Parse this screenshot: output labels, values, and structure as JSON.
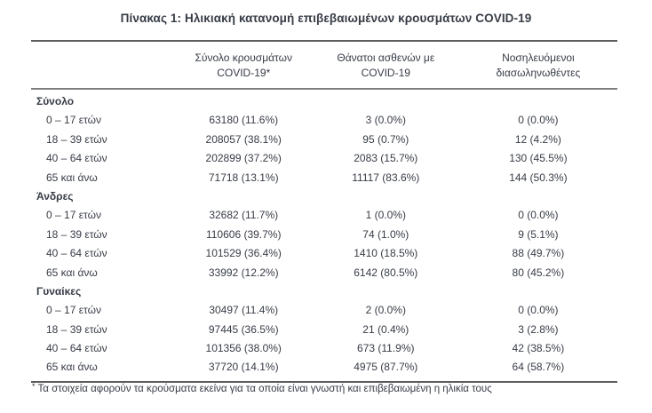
{
  "title": "Πίνακας 1: Ηλικιακή κατανομή επιβεβαιωμένων κρουσμάτων COVID-19",
  "theme": {
    "text_color": "#373c46",
    "rule_color": "#5c5c5c",
    "background": "#ffffff"
  },
  "columns": [
    {
      "id": "cases",
      "lines": [
        "Σύνολο κρουσμάτων",
        "COVID-19*"
      ]
    },
    {
      "id": "deaths",
      "lines": [
        "Θάνατοι ασθενών με",
        "COVID-19"
      ]
    },
    {
      "id": "intubated",
      "lines": [
        "Νοσηλευόμενοι",
        "διασωληνωθέντες"
      ]
    }
  ],
  "sections": [
    {
      "label": "Σύνολο",
      "rows": [
        {
          "age": "0 – 17 ετών",
          "cases": "63180 (11.6%)",
          "deaths": "3 (0.0%)",
          "intubated": "0 (0.0%)"
        },
        {
          "age": "18 – 39 ετών",
          "cases": "208057 (38.1%)",
          "deaths": "95 (0.7%)",
          "intubated": "12 (4.2%)"
        },
        {
          "age": "40 – 64 ετών",
          "cases": "202899 (37.2%)",
          "deaths": "2083 (15.7%)",
          "intubated": "130 (45.5%)"
        },
        {
          "age": "65 και άνω",
          "cases": "71718 (13.1%)",
          "deaths": "11117 (83.6%)",
          "intubated": "144 (50.3%)"
        }
      ]
    },
    {
      "label": "Άνδρες",
      "rows": [
        {
          "age": "0 – 17 ετών",
          "cases": "32682 (11.7%)",
          "deaths": "1 (0.0%)",
          "intubated": "0 (0.0%)"
        },
        {
          "age": "18 – 39 ετών",
          "cases": "110606 (39.7%)",
          "deaths": "74 (1.0%)",
          "intubated": "9 (5.1%)"
        },
        {
          "age": "40 – 64 ετών",
          "cases": "101529 (36.4%)",
          "deaths": "1410 (18.5%)",
          "intubated": "88 (49.7%)"
        },
        {
          "age": "65 και άνω",
          "cases": "33992 (12.2%)",
          "deaths": "6142 (80.5%)",
          "intubated": "80 (45.2%)"
        }
      ]
    },
    {
      "label": "Γυναίκες",
      "rows": [
        {
          "age": "0 – 17 ετών",
          "cases": "30497 (11.4%)",
          "deaths": "2 (0.0%)",
          "intubated": "0 (0.0%)"
        },
        {
          "age": "18 – 39 ετών",
          "cases": "97445 (36.5%)",
          "deaths": "21 (0.4%)",
          "intubated": "3 (2.8%)"
        },
        {
          "age": "40 – 64 ετών",
          "cases": "101356 (38.0%)",
          "deaths": "673 (11.9%)",
          "intubated": "42 (38.5%)"
        },
        {
          "age": "65 και άνω",
          "cases": "37720 (14.1%)",
          "deaths": "4975 (87.7%)",
          "intubated": "64 (58.7%)"
        }
      ]
    }
  ],
  "footnote": {
    "marker": "*",
    "text": "Τα στοιχεία αφορούν τα κρούσματα εκείνα για τα οποία είναι γνωστή και επιβεβαιωμένη η ηλικία τους"
  }
}
